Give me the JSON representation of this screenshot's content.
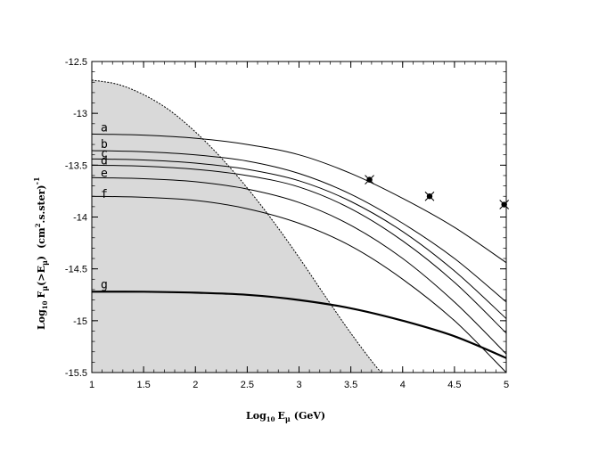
{
  "chart_data": {
    "type": "line",
    "title": "",
    "xlabel_main": "Log",
    "xlabel_sub": "10",
    "xlabel_rest": "E",
    "xlabel_sub2": "μ",
    "xlabel_unit": "(GeV)",
    "ylabel_main": "Log",
    "ylabel_sub": "10",
    "ylabel_f": "F",
    "ylabel_sub2": "μ",
    "ylabel_arg": "(>E",
    "ylabel_sub3": "μ",
    "ylabel_close": ")",
    "ylabel_unit_open": "(cm",
    "ylabel_sup": "2",
    "ylabel_unit_rest": ".s.ster)",
    "ylabel_exp": "-1",
    "xlim": [
      1,
      5
    ],
    "ylim": [
      -15.5,
      -12.5
    ],
    "xticks": [
      1,
      1.5,
      2,
      2.5,
      3,
      3.5,
      4,
      4.5,
      5
    ],
    "xtick_labels": [
      "1",
      "1.5",
      "2",
      "2.5",
      "3",
      "3.5",
      "4",
      "4.5",
      "5"
    ],
    "yticks": [
      -12.5,
      -13,
      -13.5,
      -14,
      -14.5,
      -15,
      -15.5
    ],
    "ytick_labels": [
      "-12.5",
      "-13",
      "-13.5",
      "-14",
      "-14.5",
      "-15",
      "-15.5"
    ],
    "series": [
      {
        "name": "a",
        "x": [
          1,
          1.5,
          2,
          2.5,
          3,
          3.5,
          4,
          4.5,
          5
        ],
        "y": [
          -13.2,
          -13.21,
          -13.24,
          -13.3,
          -13.4,
          -13.58,
          -13.82,
          -14.1,
          -14.44
        ]
      },
      {
        "name": "b",
        "x": [
          1,
          1.5,
          2,
          2.5,
          3,
          3.5,
          4,
          4.5,
          5
        ],
        "y": [
          -13.36,
          -13.37,
          -13.4,
          -13.46,
          -13.58,
          -13.78,
          -14.06,
          -14.4,
          -14.82
        ]
      },
      {
        "name": "c",
        "x": [
          1,
          1.5,
          2,
          2.5,
          3,
          3.5,
          4,
          4.5,
          5
        ],
        "y": [
          -13.44,
          -13.45,
          -13.48,
          -13.54,
          -13.65,
          -13.85,
          -14.14,
          -14.52,
          -14.98
        ]
      },
      {
        "name": "d",
        "x": [
          1,
          1.5,
          2,
          2.5,
          3,
          3.5,
          4,
          4.5,
          5
        ],
        "y": [
          -13.5,
          -13.51,
          -13.54,
          -13.6,
          -13.71,
          -13.92,
          -14.23,
          -14.63,
          -15.12
        ]
      },
      {
        "name": "e",
        "x": [
          1,
          1.5,
          2,
          2.5,
          3,
          3.5,
          4,
          4.5,
          5
        ],
        "y": [
          -13.62,
          -13.63,
          -13.66,
          -13.73,
          -13.86,
          -14.08,
          -14.4,
          -14.82,
          -15.32
        ]
      },
      {
        "name": "f",
        "x": [
          1,
          1.5,
          2,
          2.5,
          3,
          3.5,
          4,
          4.5,
          5
        ],
        "y": [
          -13.8,
          -13.81,
          -13.84,
          -13.92,
          -14.06,
          -14.28,
          -14.6,
          -15.0,
          -15.5
        ]
      },
      {
        "name": "g",
        "x": [
          1,
          1.5,
          2,
          2.5,
          3,
          3.5,
          4,
          4.5,
          5
        ],
        "y": [
          -14.72,
          -14.72,
          -14.73,
          -14.75,
          -14.8,
          -14.88,
          -15.0,
          -15.15,
          -15.36
        ],
        "bold": true
      }
    ],
    "boundary": {
      "x": [
        1,
        1.25,
        1.5,
        1.75,
        2,
        2.25,
        2.5,
        2.75,
        3,
        3.25,
        3.5,
        3.75,
        3.9
      ],
      "y": [
        -12.68,
        -12.72,
        -12.82,
        -12.97,
        -13.18,
        -13.43,
        -13.72,
        -14.04,
        -14.39,
        -14.76,
        -15.12,
        -15.45,
        -15.6
      ]
    },
    "points": [
      {
        "x": 3.68,
        "y": -13.64
      },
      {
        "x": 4.26,
        "y": -13.8
      },
      {
        "x": 4.98,
        "y": -13.88
      }
    ],
    "colors": {
      "shade": "#d9d9d9",
      "line": "#000000"
    }
  }
}
